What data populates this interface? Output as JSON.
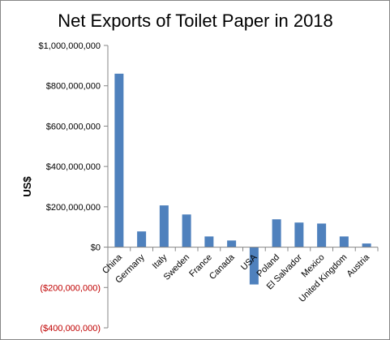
{
  "chart_data": {
    "type": "bar",
    "title": "Net Exports of Toilet Paper in 2018",
    "xlabel": "",
    "ylabel": "US$",
    "ylim": [
      -400000000,
      1000000000
    ],
    "yticks": [
      1000000000,
      800000000,
      600000000,
      400000000,
      200000000,
      0,
      -200000000,
      -400000000
    ],
    "ytick_labels": [
      "$1,000,000,000",
      "$800,000,000",
      "$600,000,000",
      "$400,000,000",
      "$200,000,000",
      "$0",
      "($200,000,000)",
      "($400,000,000)"
    ],
    "categories": [
      "China",
      "Germany",
      "Italy",
      "Sweden",
      "France",
      "Canada",
      "USA",
      "Poland",
      "El Salvador",
      "Mexico",
      "United Kingdom",
      "Austria"
    ],
    "values": [
      860000000,
      78000000,
      207000000,
      162000000,
      53000000,
      33000000,
      -185000000,
      138000000,
      122000000,
      117000000,
      53000000,
      18000000
    ],
    "grid": false,
    "legend": "none",
    "colors": {
      "bar": "#4f81bd",
      "negative_label": "#c00000",
      "text": "#000000",
      "axis": "#868686"
    }
  }
}
